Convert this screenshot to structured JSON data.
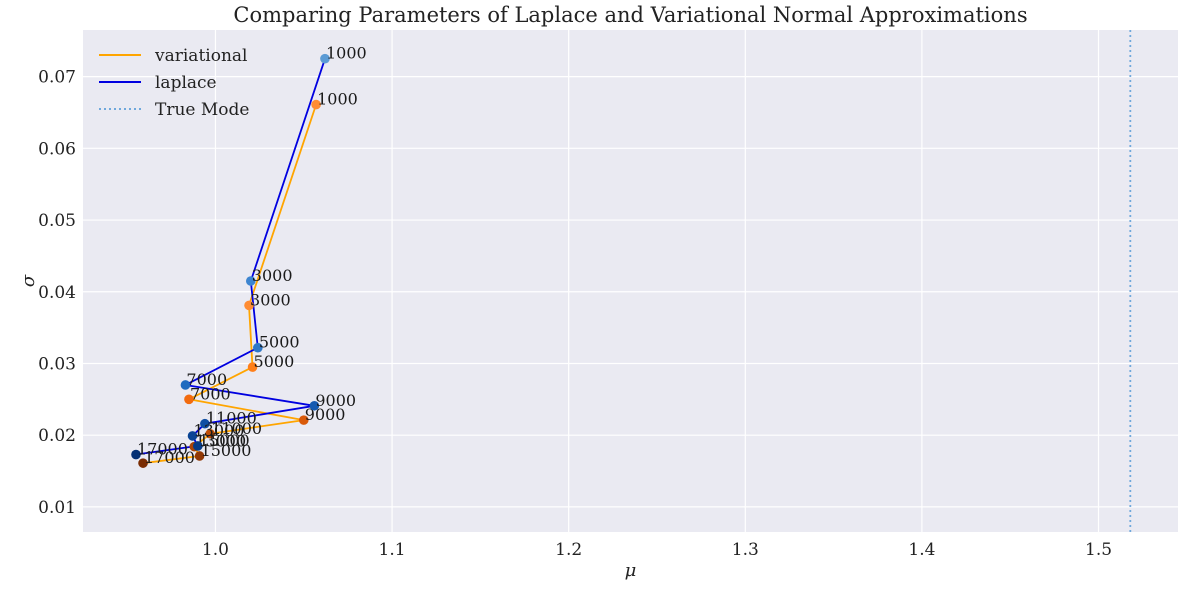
{
  "chart_data": {
    "type": "line",
    "title": "Comparing Parameters of Laplace and Variational Normal Approximations",
    "xlabel": "μ",
    "ylabel": "σ",
    "xlim": [
      0.925,
      1.545
    ],
    "ylim": [
      0.0065,
      0.0765
    ],
    "x_ticks": [
      "1.0",
      "1.1",
      "1.2",
      "1.3",
      "1.4",
      "1.5"
    ],
    "y_ticks": [
      "0.01",
      "0.02",
      "0.03",
      "0.04",
      "0.05",
      "0.06",
      "0.07"
    ],
    "grid": true,
    "background": "#eaeaf2",
    "legend_position": "top-left",
    "true_mode": {
      "name": "True Mode",
      "x": 1.518,
      "color": "#6fa8dc"
    },
    "series": [
      {
        "name": "variational",
        "color": "#ffa500",
        "points": [
          {
            "x": 1.057,
            "y": 0.0661,
            "label": "1000",
            "marker": "#ff8c33"
          },
          {
            "x": 1.019,
            "y": 0.0381,
            "label": "3000",
            "marker": "#ff8c33"
          },
          {
            "x": 1.021,
            "y": 0.0295,
            "label": "5000",
            "marker": "#ff7f1a"
          },
          {
            "x": 0.985,
            "y": 0.025,
            "label": "7000",
            "marker": "#f26b0f"
          },
          {
            "x": 1.05,
            "y": 0.0221,
            "label": "9000",
            "marker": "#d95a0a"
          },
          {
            "x": 0.997,
            "y": 0.0202,
            "label": "11000",
            "marker": "#c04f08"
          },
          {
            "x": 0.988,
            "y": 0.0184,
            "label": "13000",
            "marker": "#a84306"
          },
          {
            "x": 0.991,
            "y": 0.0171,
            "label": "15000",
            "marker": "#913805"
          },
          {
            "x": 0.959,
            "y": 0.0161,
            "label": "17000",
            "marker": "#7a2c03"
          }
        ]
      },
      {
        "name": "laplace",
        "color": "#0000e0",
        "points": [
          {
            "x": 1.062,
            "y": 0.0725,
            "label": "1000",
            "marker": "#5b9bd5"
          },
          {
            "x": 1.02,
            "y": 0.0415,
            "label": "3000",
            "marker": "#3d85d0"
          },
          {
            "x": 1.024,
            "y": 0.0322,
            "label": "5000",
            "marker": "#2f78c8"
          },
          {
            "x": 0.983,
            "y": 0.027,
            "label": "7000",
            "marker": "#1f6bbf"
          },
          {
            "x": 1.056,
            "y": 0.0241,
            "label": "9000",
            "marker": "#165bb0"
          },
          {
            "x": 0.994,
            "y": 0.0216,
            "label": "11000",
            "marker": "#0f4fa3"
          },
          {
            "x": 0.987,
            "y": 0.0199,
            "label": "13000",
            "marker": "#0a4494"
          },
          {
            "x": 0.99,
            "y": 0.0185,
            "label": "15000",
            "marker": "#063a85"
          },
          {
            "x": 0.955,
            "y": 0.0173,
            "label": "17000",
            "marker": "#043075"
          }
        ]
      }
    ]
  }
}
